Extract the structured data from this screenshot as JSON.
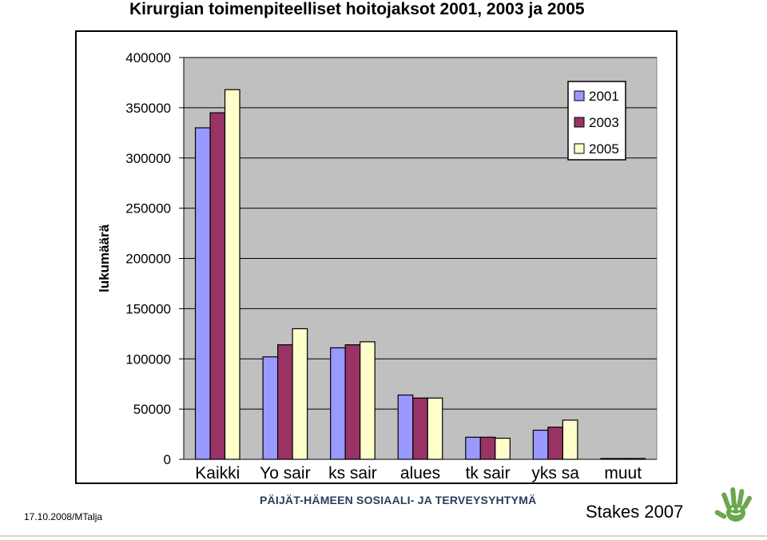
{
  "title": "Kirurgian toimenpiteelliset hoitojaksot 2001, 2003 ja 2005",
  "footer": {
    "date_author": "17.10.2008/MTalja",
    "organization": "PÄIJÄT-HÄMEEN SOSIAALI- JA TERVEYSYHTYMÄ",
    "source": "Stakes 2007"
  },
  "chart_data": {
    "type": "bar",
    "ylabel": "lukumäärä",
    "xlabel": "",
    "ylim": [
      0,
      400000
    ],
    "yticks": [
      0,
      50000,
      100000,
      150000,
      200000,
      250000,
      300000,
      350000,
      400000
    ],
    "grid": true,
    "legend_position": "top-right",
    "categories": [
      "Kaikki",
      "Yo sair",
      "ks sair",
      "alues",
      "tk sair",
      "yks sa",
      "muut"
    ],
    "series": [
      {
        "name": "2001",
        "color": "#9999ff",
        "values": [
          330000,
          102000,
          111000,
          64000,
          22000,
          29000,
          800
        ]
      },
      {
        "name": "2003",
        "color": "#993366",
        "values": [
          345000,
          114000,
          114000,
          61000,
          22000,
          32000,
          800
        ]
      },
      {
        "name": "2005",
        "color": "#ffffcc",
        "values": [
          368000,
          130000,
          117000,
          61000,
          21000,
          39000,
          800
        ]
      }
    ],
    "plot_background": "#c0c0c0"
  }
}
